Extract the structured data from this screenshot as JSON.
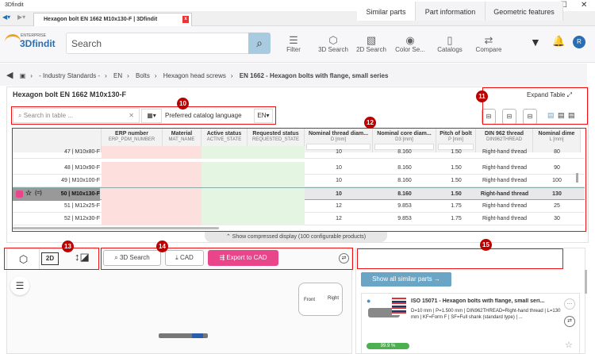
{
  "window": {
    "title": "3Dfindit",
    "tab": "Hexagon bolt EN 1662 M10x130-F | 3Dfindit"
  },
  "header": {
    "logo_small": "ENTERPRISE",
    "logo": "3Dfindit",
    "search_placeholder": "Search",
    "tools": [
      "Filter",
      "3D Search",
      "2D Search",
      "Color Se...",
      "Catalogs",
      "Compare"
    ],
    "avatar": "R"
  },
  "breadcrumb": [
    "- Industry Standards -",
    "EN",
    "Bolts",
    "Hexagon head screws",
    "EN 1662 - Hexagon bolts with flange, small series"
  ],
  "card": {
    "title": "Hexagon bolt EN 1662 M10x130-F",
    "expand": "Expand Table",
    "search_placeholder": "Search in table ...",
    "lang_label": "Preferred catalog language",
    "lang": "EN"
  },
  "annotations": [
    "10",
    "11",
    "12",
    "13",
    "14",
    "15"
  ],
  "table": {
    "columns": [
      {
        "name": "ERP number",
        "sub": "ERP_PDM_NUMBER"
      },
      {
        "name": "Material",
        "sub": "MAT_NAME"
      },
      {
        "name": "Active status",
        "sub": "ACTIVE_STATE"
      },
      {
        "name": "Requested status",
        "sub": "REQUESTED_STATE"
      },
      {
        "name": "Nominal thread diam...",
        "sub": "D [mm]"
      },
      {
        "name": "Nominal core diam...",
        "sub": "D3 [mm]"
      },
      {
        "name": "Pitch of bolt",
        "sub": "P [mm]"
      },
      {
        "name": "DIN 962 thread",
        "sub": "DIN962THREAD"
      },
      {
        "name": "Nominal dime",
        "sub": "L [mm]"
      }
    ],
    "rows": [
      {
        "label": "47 | M10x80-F",
        "d": "10",
        "d3": "8.160",
        "p": "1.50",
        "t": "Right-hand thread",
        "l": "80"
      },
      {
        "label": "48 | M10x90-F",
        "d": "10",
        "d3": "8.160",
        "p": "1.50",
        "t": "Right-hand thread",
        "l": "90"
      },
      {
        "label": "49 | M10x100-F",
        "d": "10",
        "d3": "8.160",
        "p": "1.50",
        "t": "Right-hand thread",
        "l": "100"
      },
      {
        "label": "50 | M10x130-F",
        "d": "10",
        "d3": "8.160",
        "p": "1.50",
        "t": "Right-hand thread",
        "l": "130",
        "selected": true
      },
      {
        "label": "51 | M12x25-F",
        "d": "12",
        "d3": "9.853",
        "p": "1.75",
        "t": "Right-hand thread",
        "l": "25"
      },
      {
        "label": "52 | M12x30-F",
        "d": "12",
        "d3": "9.853",
        "p": "1.75",
        "t": "Right-hand thread",
        "l": "30"
      }
    ],
    "compress": "Show compressed display (100 configurable products)"
  },
  "viewer": {
    "modes": [
      "3D",
      "2D"
    ],
    "buttons": {
      "search3d": "3D Search",
      "cad": "CAD",
      "export": "Export to CAD"
    },
    "cube": {
      "front": "Front",
      "right": "Right"
    }
  },
  "similar": {
    "tabs": [
      "Similar parts",
      "Part information",
      "Geometric features"
    ],
    "show_all": "Show all similar parts →",
    "item": {
      "title": "ISO 15071 - Hexagon bolts with flange, small seri...",
      "desc": "D=10 mm | P=1.500 mm | DIN962THREAD=Right-hand thread | L=130 mm | KF=Form F | SF=Full shank (standard type) | ...",
      "score": "99.9 %"
    }
  },
  "colors": {
    "accent": "#e8458b",
    "search_btn": "#a9cbe0",
    "annotation": "#e11111",
    "erp_bg": "#fde0de",
    "status_bg": "#e4f6e2",
    "show_all_bg": "#6aa5c6"
  }
}
